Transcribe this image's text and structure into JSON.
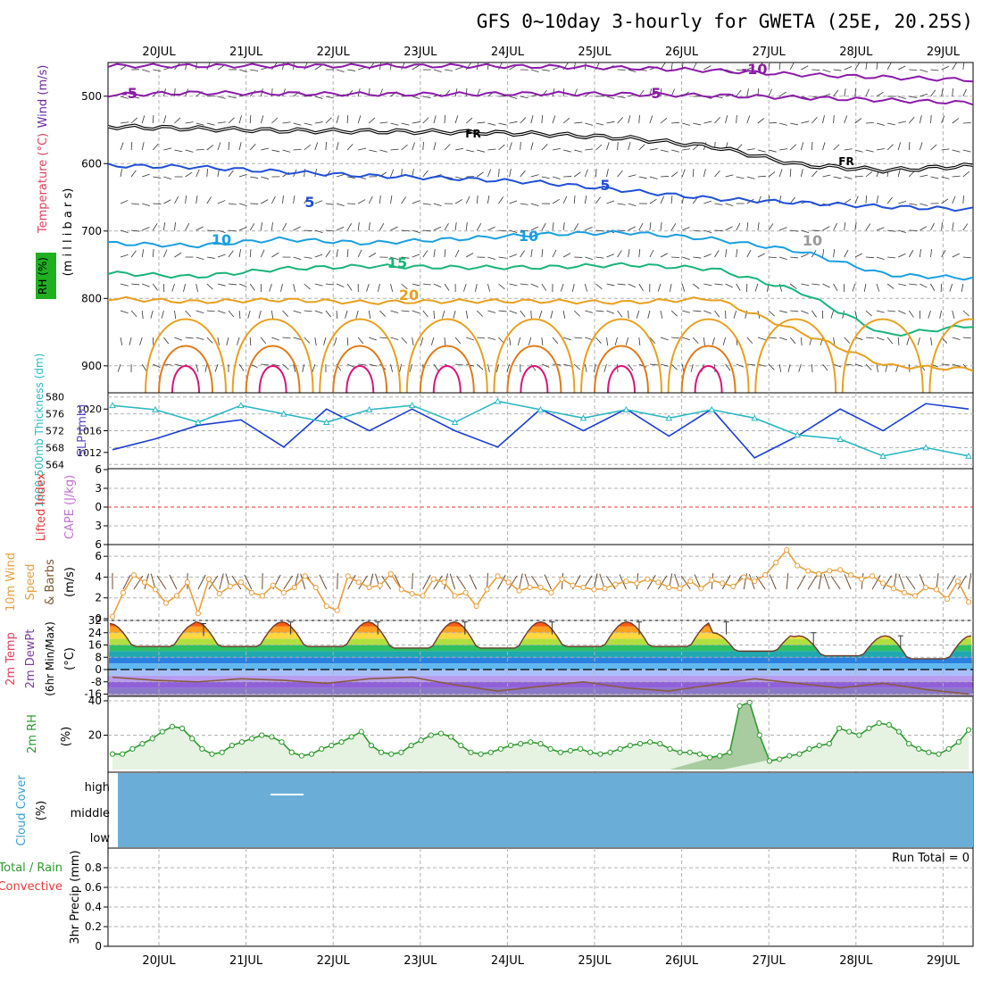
{
  "title": "GFS 0~10day 3-hourly for GWETA (25E, 20.25S)",
  "colors": {
    "purple": "#8a1aa8",
    "black": "#000000",
    "blue": "#1f4fd6",
    "cyan": "#1a9fe0",
    "green": "#19b47a",
    "orange": "#e8a020",
    "darkorange": "#e07a18",
    "magenta": "#d8157a",
    "grey": "#9a9a9a",
    "slp": "#1b3fd0",
    "thickness": "#2ab8c4",
    "lifted": "#e63a3a",
    "wind": "#e8a040",
    "rh": "#2e9a2e",
    "cloud": "#6aaed8"
  },
  "chart_data": [
    {
      "type": "line",
      "panel": "upper_air",
      "xlabels": [
        "20JUL",
        "21JUL",
        "22JUL",
        "23JUL",
        "24JUL",
        "25JUL",
        "26JUL",
        "27JUL",
        "28JUL",
        "29JUL"
      ],
      "ylabel_wind": "Wind (m/s)",
      "ylabel_temp": "Temperature (°C)",
      "ylabel_rh": "RH (%)",
      "ylabel_pressure": "(m i l l i b a r s)",
      "yticks": [
        "500",
        "600",
        "700",
        "800",
        "900"
      ],
      "contour_labels": [
        "-5",
        "5",
        "FR",
        "FR",
        "5",
        "5",
        "10",
        "10",
        "10",
        "15",
        "20",
        "-10"
      ],
      "series": [
        {
          "level": -10,
          "p": [
            455,
            455,
            455,
            455,
            455,
            456,
            458,
            462,
            468,
            472,
            476
          ]
        },
        {
          "level": -5,
          "p": [
            498,
            495,
            496,
            497,
            497,
            496,
            497,
            499,
            502,
            506,
            510
          ]
        },
        {
          "level": 0,
          "p": [
            545,
            548,
            551,
            552,
            553,
            556,
            562,
            575,
            602,
            610,
            603
          ]
        },
        {
          "level": 5,
          "p": [
            603,
            605,
            612,
            618,
            622,
            628,
            640,
            652,
            658,
            664,
            668
          ]
        },
        {
          "level": 10,
          "p": [
            718,
            722,
            712,
            718,
            712,
            705,
            702,
            712,
            730,
            765,
            770
          ]
        },
        {
          "level": 15,
          "p": [
            762,
            768,
            756,
            752,
            754,
            754,
            750,
            756,
            790,
            855,
            840
          ]
        },
        {
          "level": 20,
          "p": [
            800,
            805,
            802,
            806,
            804,
            804,
            806,
            800,
            850,
            900,
            905
          ]
        }
      ]
    },
    {
      "type": "line",
      "panel": "slp_thickness",
      "ylabel": "SLP (mb)",
      "ylabel2": "1000-500mb Thickness (dm)",
      "slp_ticks": [
        1012,
        1016,
        1020
      ],
      "thick_ticks": [
        564,
        568,
        572,
        576,
        580
      ],
      "series": [
        {
          "name": "SLP",
          "values": [
            1012.5,
            1014.5,
            1017,
            1018,
            1013,
            1020,
            1016,
            1020,
            1016,
            1013,
            1020,
            1016,
            1020,
            1015,
            1020,
            1011,
            1015,
            1020,
            1016,
            1021,
            1020
          ]
        },
        {
          "name": "Thickness",
          "values": [
            578,
            577,
            574,
            578,
            576,
            574,
            577,
            578,
            574,
            579,
            577,
            575,
            577,
            575,
            577,
            575,
            571,
            570,
            566,
            568,
            566
          ]
        }
      ]
    },
    {
      "type": "line",
      "panel": "lifted_cape",
      "ylabel": "Lifted Index",
      "ylabel2": "CAPE (J/kg)",
      "yticks": [
        "-6",
        "-3",
        "0",
        "3",
        "6"
      ]
    },
    {
      "type": "line",
      "panel": "wind10m",
      "ylabel": "10m Wind Speed & Barbs (m/s)",
      "ylabel_a": "10m Wind",
      "ylabel_b": "Speed",
      "ylabel_c": "& Barbs",
      "ylabel_d": "(m/s)",
      "yticks": [
        "0",
        "2",
        "4",
        "6"
      ],
      "ylim": [
        0,
        7
      ],
      "series": [
        {
          "name": "Wind speed",
          "values": [
            0.2,
            2.5,
            4.2,
            3.5,
            2.8,
            1.5,
            2.2,
            3.5,
            0.5,
            3.8,
            2.4,
            3.1,
            3.5,
            2.5,
            2.2,
            3.2,
            2.5,
            3.0,
            4.1,
            3.0,
            1.2,
            0.8,
            4.1,
            3.5,
            3.0,
            3.2,
            4.3,
            2.8,
            2.4,
            2.2,
            3.8,
            3.5,
            2.2,
            2.5,
            1.2,
            2.8,
            4.1,
            3.5,
            2.7,
            3.0,
            3.0,
            2.5,
            3.8,
            3.2,
            3.0,
            2.8,
            2.9,
            3.3,
            3.6,
            3.4,
            3.8,
            3.5,
            3.0,
            2.9,
            3.6,
            2.9,
            3.7,
            3.4,
            3.1,
            4.0,
            3.6,
            4.2,
            5.4,
            6.6,
            5.1,
            4.6,
            4.3,
            4.6,
            4.7,
            4.2,
            3.8,
            4.1,
            3.4,
            2.9,
            2.5,
            2.2,
            3.0,
            2.8,
            1.9,
            3.6,
            1.6
          ]
        }
      ]
    },
    {
      "type": "area",
      "panel": "temp_dewpt",
      "ylabel_a": "2m Temp",
      "ylabel_b": "2m DewPt",
      "ylabel_c": "(6hr Min/Max)",
      "ylabel_d": "(°C)",
      "yticks": [
        "-16",
        "-8",
        "0",
        "8",
        "16",
        "24",
        "32"
      ],
      "series": [
        {
          "name": "Temp max",
          "values": [
            30,
            31,
            31,
            31,
            31,
            31,
            31,
            24,
            22,
            22
          ]
        },
        {
          "name": "Temp min",
          "values": [
            15,
            15,
            15,
            14,
            14,
            15,
            15,
            12,
            9,
            7
          ]
        },
        {
          "name": "Dew point",
          "values": [
            -5,
            -7,
            -8,
            -6,
            -7,
            -9,
            -6,
            -5,
            -10,
            -14,
            -11,
            -8,
            -12,
            -14,
            -10,
            -6,
            -9,
            -12,
            -9,
            -13,
            -16
          ]
        }
      ]
    },
    {
      "type": "area",
      "panel": "rh2m",
      "ylabel": "2m RH",
      "yunit": "(%)",
      "yticks": [
        "20",
        "40"
      ],
      "ylim": [
        0,
        40
      ],
      "series": [
        {
          "name": "RH",
          "values": [
            9,
            9,
            12,
            15,
            18,
            22,
            25,
            24,
            18,
            12,
            9,
            10,
            14,
            16,
            18,
            20,
            19,
            16,
            10,
            8,
            9,
            12,
            14,
            16,
            19,
            22,
            14,
            10,
            9,
            10,
            14,
            17,
            20,
            21,
            19,
            14,
            10,
            9,
            10,
            12,
            14,
            15,
            16,
            15,
            12,
            10,
            11,
            12,
            10,
            9,
            10,
            12,
            14,
            15,
            16,
            15,
            12,
            10,
            10,
            9,
            7,
            8,
            10,
            37,
            39,
            20,
            5,
            6,
            8,
            9,
            12,
            14,
            15,
            24,
            22,
            20,
            24,
            27,
            26,
            22,
            15,
            12,
            10,
            9,
            12,
            16,
            23
          ]
        }
      ]
    },
    {
      "type": "area",
      "panel": "cloud",
      "ylabel": "Cloud Cover",
      "yunit": "(%)",
      "levels": [
        "high",
        "middle",
        "low"
      ]
    },
    {
      "type": "bar",
      "panel": "precip",
      "ylabel": "3hr Precip (mm)",
      "legend_a": "Total / Rain",
      "legend_b": "Convective",
      "run_total": "Run Total = 0",
      "yticks": [
        "0",
        "0.2",
        "0.4",
        "0.6",
        "0.8"
      ],
      "ylim": [
        0,
        1
      ]
    }
  ]
}
